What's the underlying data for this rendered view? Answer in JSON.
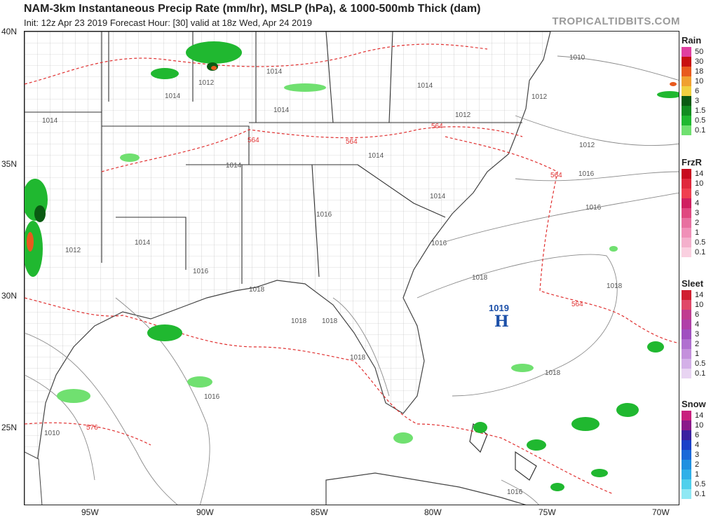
{
  "header": {
    "title": "NAM-3km Instantaneous Precip Rate (mm/hr), MSLP (hPa), & 1000-500mb Thick (dam)",
    "subtitle": "Init: 12z Apr 23 2019   Forecast Hour: [30]   valid at 18z Wed, Apr 24 2019",
    "brand": "TROPICALTIDBITS.COM"
  },
  "axes": {
    "lat_labels": [
      "40N",
      "35N",
      "30N",
      "25N"
    ],
    "lon_labels": [
      "95W",
      "90W",
      "85W",
      "80W",
      "75W",
      "70W"
    ]
  },
  "high_pressure": {
    "value": "1019",
    "symbol": "H"
  },
  "isobar_labels": [
    "1010",
    "1012",
    "1012",
    "1012",
    "1012",
    "1012",
    "1014",
    "1014",
    "1014",
    "1014",
    "1014",
    "1014",
    "1014",
    "1014",
    "1014",
    "1016",
    "1016",
    "1016",
    "1016",
    "1016",
    "1016",
    "1018",
    "1018",
    "1018",
    "1018",
    "1018",
    "1018",
    "1018",
    "1010",
    "1016"
  ],
  "thickness_labels": [
    "564",
    "564",
    "564",
    "564",
    "564",
    "576"
  ],
  "legends": [
    {
      "title": "Rain",
      "levels": [
        "50",
        "30",
        "18",
        "10",
        "6",
        "3",
        "1.5",
        "0.5",
        "0.1"
      ],
      "colors": [
        "#e040a0",
        "#c81010",
        "#e85a1e",
        "#f0a030",
        "#f0d040",
        "#0a5a12",
        "#128c20",
        "#20b830",
        "#70e070"
      ]
    },
    {
      "title": "FrzR",
      "levels": [
        "14",
        "10",
        "6",
        "4",
        "3",
        "2",
        "1",
        "0.5",
        "0.1"
      ],
      "colors": [
        "#c80a1e",
        "#e0283c",
        "#f04050",
        "#d02060",
        "#e04880",
        "#e870a0",
        "#f090b8",
        "#f4b0cc",
        "#fad0e0"
      ]
    },
    {
      "title": "Sleet",
      "levels": [
        "14",
        "10",
        "6",
        "4",
        "3",
        "2",
        "1",
        "0.5",
        "0.1"
      ],
      "colors": [
        "#d02030",
        "#e04868",
        "#c03c90",
        "#b040a8",
        "#a050c0",
        "#b070d0",
        "#c490dc",
        "#d4b0e8",
        "#e8d4f2"
      ]
    },
    {
      "title": "Snow",
      "levels": [
        "14",
        "10",
        "6",
        "4",
        "3",
        "2",
        "1",
        "0.5",
        "0.1"
      ],
      "colors": [
        "#c8207e",
        "#8a1a8a",
        "#3a20a0",
        "#1a40c8",
        "#1a68d8",
        "#2090e0",
        "#30b0e8",
        "#50d0ec",
        "#90e8f4"
      ]
    }
  ]
}
